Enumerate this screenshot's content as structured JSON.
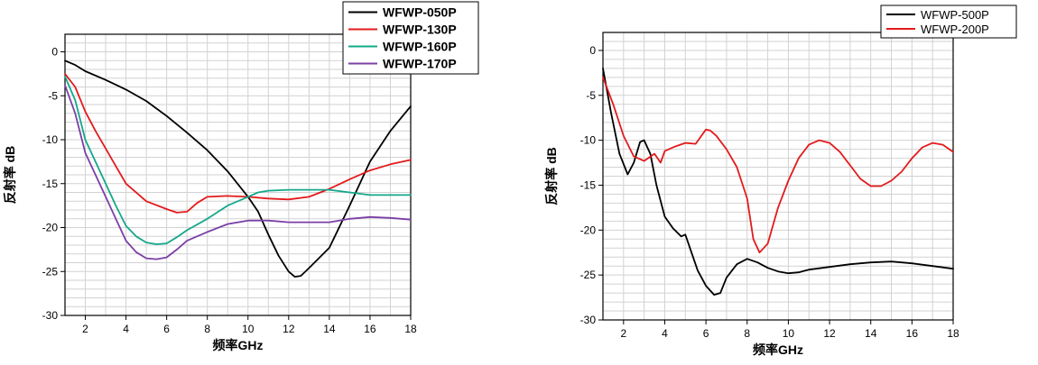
{
  "chart_data": [
    {
      "type": "line",
      "xlabel": "频率GHz",
      "ylabel": "反射率 dB",
      "xlim": [
        1,
        18
      ],
      "ylim": [
        -30,
        2
      ],
      "xticks": [
        2,
        4,
        6,
        8,
        10,
        12,
        14,
        16,
        18
      ],
      "yticks": [
        0,
        -5,
        -10,
        -15,
        -20,
        -25,
        -30
      ],
      "grid": true,
      "legend_position": "top-right",
      "series": [
        {
          "name": "WFWP-050P",
          "color": "#000000",
          "x": [
            1,
            1.5,
            2,
            3,
            4,
            5,
            6,
            7,
            8,
            9,
            10,
            10.5,
            11,
            11.5,
            12,
            12.3,
            12.6,
            13,
            14,
            15,
            16,
            17,
            18
          ],
          "y": [
            -1.0,
            -1.5,
            -2.2,
            -3.2,
            -4.3,
            -5.6,
            -7.3,
            -9.2,
            -11.2,
            -13.6,
            -16.5,
            -18.2,
            -20.8,
            -23.2,
            -25.0,
            -25.6,
            -25.5,
            -24.6,
            -22.3,
            -17.5,
            -12.5,
            -9.0,
            -6.2
          ]
        },
        {
          "name": "WFWP-130P",
          "color": "#e31a1c",
          "x": [
            1,
            1.5,
            2,
            2.5,
            3,
            3.5,
            4,
            5,
            6,
            6.5,
            7,
            7.5,
            8,
            9,
            10,
            11,
            12,
            13,
            14,
            15,
            16,
            17,
            18
          ],
          "y": [
            -2.5,
            -4.0,
            -6.8,
            -9.0,
            -11.0,
            -13.0,
            -15.0,
            -17.0,
            -17.9,
            -18.3,
            -18.2,
            -17.2,
            -16.5,
            -16.4,
            -16.5,
            -16.7,
            -16.8,
            -16.5,
            -15.6,
            -14.5,
            -13.5,
            -12.8,
            -12.3
          ]
        },
        {
          "name": "WFWP-160P",
          "color": "#14a88a",
          "x": [
            1,
            1.5,
            2,
            2.5,
            3,
            3.5,
            4,
            4.5,
            5,
            5.5,
            6,
            6.5,
            7,
            8,
            9,
            10,
            10.5,
            11,
            12,
            13,
            14,
            15,
            16,
            17,
            18
          ],
          "y": [
            -2.8,
            -5.5,
            -10.0,
            -12.5,
            -15.0,
            -17.5,
            -19.8,
            -21.0,
            -21.7,
            -21.9,
            -21.8,
            -21.1,
            -20.3,
            -19.0,
            -17.5,
            -16.5,
            -16.0,
            -15.8,
            -15.7,
            -15.7,
            -15.7,
            -16.0,
            -16.3,
            -16.3,
            -16.3
          ]
        },
        {
          "name": "WFWP-170P",
          "color": "#7b3fa6",
          "x": [
            1,
            1.5,
            2,
            2.5,
            3,
            3.5,
            4,
            4.5,
            5,
            5.5,
            6,
            6.5,
            7,
            8,
            9,
            10,
            11,
            12,
            13,
            14,
            15,
            16,
            17,
            18
          ],
          "y": [
            -3.8,
            -7.0,
            -11.5,
            -14.0,
            -16.5,
            -19.0,
            -21.5,
            -22.8,
            -23.5,
            -23.6,
            -23.4,
            -22.5,
            -21.5,
            -20.5,
            -19.6,
            -19.2,
            -19.2,
            -19.4,
            -19.4,
            -19.4,
            -19.0,
            -18.8,
            -18.9,
            -19.1
          ]
        }
      ]
    },
    {
      "type": "line",
      "xlabel": "频率GHz",
      "ylabel": "反射率 dB",
      "xlim": [
        1,
        18
      ],
      "ylim": [
        -30,
        2
      ],
      "xticks": [
        2,
        4,
        6,
        8,
        10,
        12,
        14,
        16,
        18
      ],
      "yticks": [
        0,
        -5,
        -10,
        -15,
        -20,
        -25,
        -30
      ],
      "grid": true,
      "legend_position": "top-right",
      "series": [
        {
          "name": "WFWP-500P",
          "color": "#000000",
          "x": [
            1,
            1.4,
            1.8,
            2.2,
            2.5,
            2.8,
            3.0,
            3.3,
            3.6,
            4.0,
            4.4,
            4.8,
            5.0,
            5.3,
            5.6,
            6.0,
            6.4,
            6.7,
            7.0,
            7.5,
            8.0,
            8.5,
            9.0,
            9.5,
            10.0,
            10.5,
            11.0,
            12.0,
            13.0,
            14.0,
            15.0,
            16.0,
            17.0,
            18.0
          ],
          "y": [
            -2.0,
            -7.0,
            -11.5,
            -13.8,
            -12.5,
            -10.2,
            -10.0,
            -11.5,
            -15.0,
            -18.5,
            -19.8,
            -20.7,
            -20.5,
            -22.5,
            -24.5,
            -26.2,
            -27.2,
            -27.0,
            -25.3,
            -23.8,
            -23.2,
            -23.6,
            -24.2,
            -24.6,
            -24.8,
            -24.7,
            -24.4,
            -24.1,
            -23.8,
            -23.6,
            -23.5,
            -23.7,
            -24.0,
            -24.3
          ]
        },
        {
          "name": "WFWP-200P",
          "color": "#e31a1c",
          "x": [
            1,
            1.5,
            2.0,
            2.5,
            3.0,
            3.5,
            3.8,
            4.0,
            4.5,
            5.0,
            5.5,
            6.0,
            6.2,
            6.5,
            7.0,
            7.5,
            8.0,
            8.3,
            8.6,
            9.0,
            9.5,
            10.0,
            10.5,
            11.0,
            11.5,
            12.0,
            12.5,
            13.0,
            13.5,
            14.0,
            14.5,
            15.0,
            15.5,
            16.0,
            16.5,
            17.0,
            17.5,
            18.0
          ],
          "y": [
            -3.0,
            -6.0,
            -9.5,
            -11.8,
            -12.3,
            -11.5,
            -12.5,
            -11.2,
            -10.7,
            -10.3,
            -10.4,
            -8.8,
            -8.9,
            -9.5,
            -11.0,
            -13.0,
            -16.5,
            -21.0,
            -22.5,
            -21.5,
            -17.5,
            -14.5,
            -12.0,
            -10.5,
            -10.0,
            -10.3,
            -11.3,
            -12.8,
            -14.3,
            -15.1,
            -15.1,
            -14.5,
            -13.5,
            -12.0,
            -10.8,
            -10.3,
            -10.5,
            -11.3
          ]
        }
      ]
    }
  ]
}
